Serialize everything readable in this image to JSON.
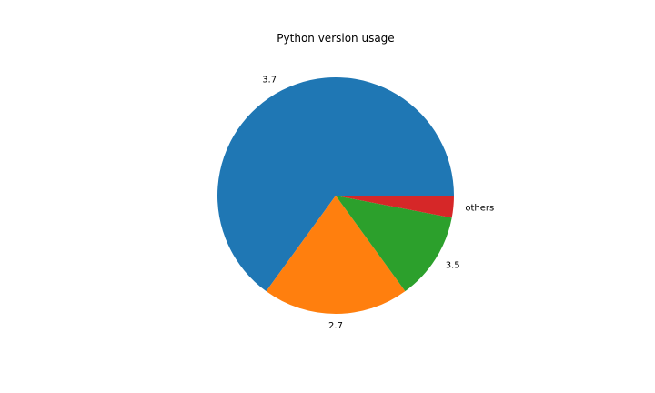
{
  "chart_data": {
    "type": "pie",
    "title": "Python version usage",
    "labels": [
      "3.7",
      "2.7",
      "3.5",
      "others"
    ],
    "values": [
      65,
      20,
      12,
      3
    ],
    "unit": "percent",
    "colors": [
      "#1f77b4",
      "#ff7f0e",
      "#2ca02c",
      "#d62728"
    ],
    "start_angle_deg": 0,
    "direction": "counterclockwise",
    "legend": "none",
    "labels_outside": true
  }
}
